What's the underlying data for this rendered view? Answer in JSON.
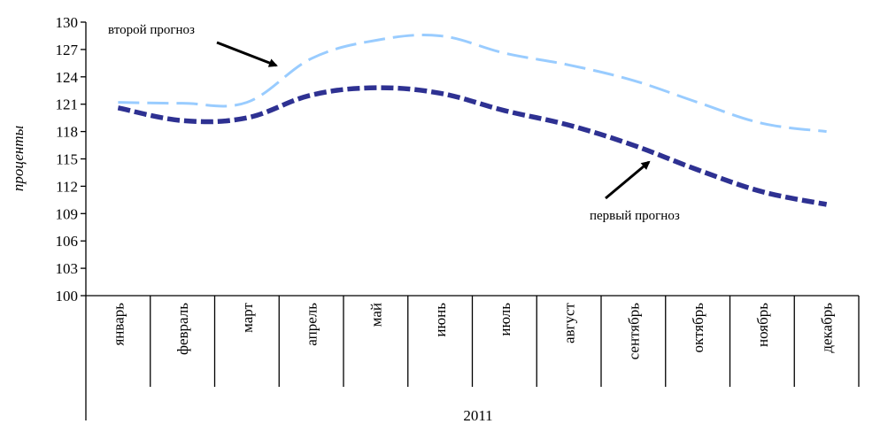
{
  "chart_data": {
    "type": "line",
    "ylabel": "проценты",
    "xgroup_label": "2011",
    "ylim": [
      100,
      130
    ],
    "yticks": [
      100,
      103,
      106,
      109,
      112,
      115,
      118,
      121,
      124,
      127,
      130
    ],
    "categories": [
      "январь",
      "февраль",
      "март",
      "апрель",
      "май",
      "июнь",
      "июль",
      "август",
      "сентябрь",
      "октябрь",
      "ноябрь",
      "декабрь"
    ],
    "series": [
      {
        "name": "первый прогноз",
        "color": "#2e3192",
        "style": "dashed-bold",
        "values": [
          120.6,
          119.2,
          119.5,
          122.0,
          122.8,
          122.2,
          120.3,
          118.7,
          116.5,
          113.8,
          111.4,
          110.0
        ]
      },
      {
        "name": "второй прогноз",
        "color": "#99ccff",
        "style": "dashed",
        "values": [
          121.2,
          121.1,
          121.2,
          126.0,
          128.0,
          128.5,
          126.6,
          125.3,
          123.6,
          121.2,
          118.9,
          118.0
        ]
      }
    ],
    "annotations": [
      {
        "text": "второй прогноз",
        "series": "второй прогноз"
      },
      {
        "text": "первый прогноз",
        "series": "первый прогноз"
      }
    ],
    "grid": false,
    "legend": "none"
  }
}
